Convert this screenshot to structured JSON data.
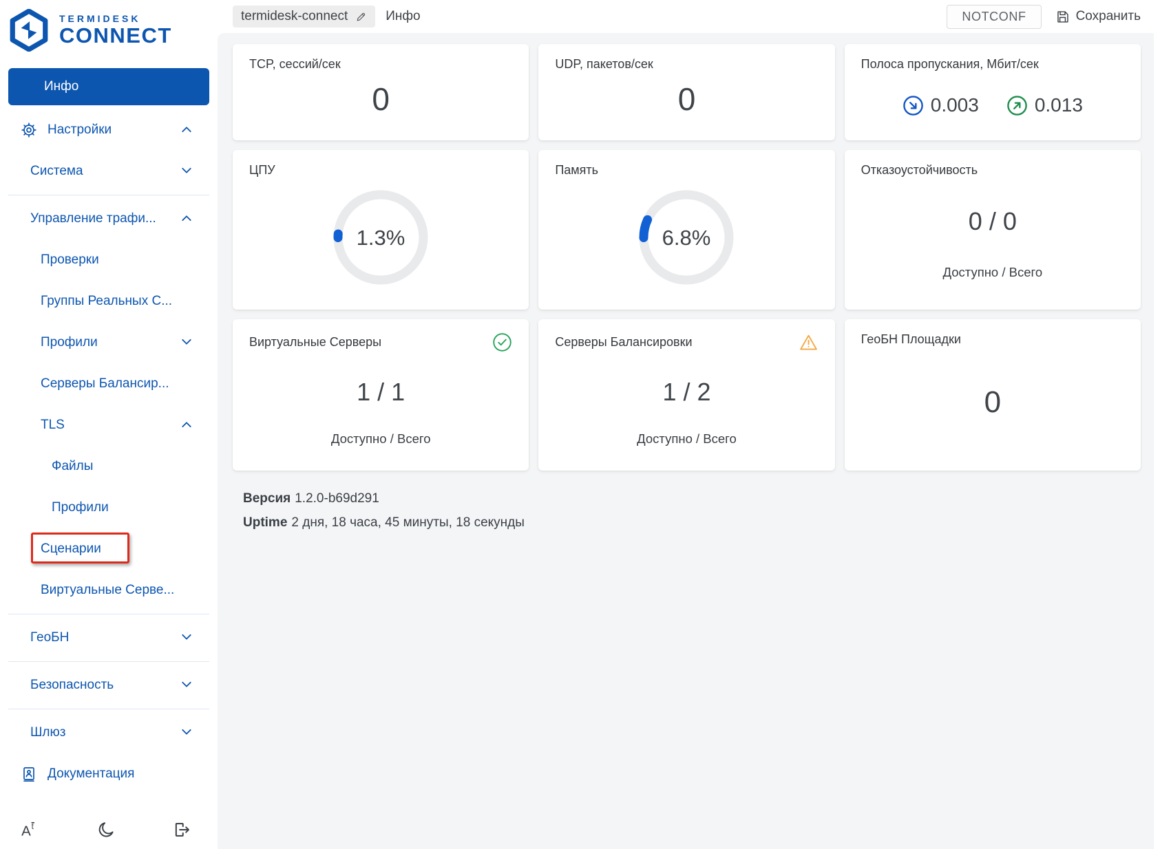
{
  "brand": {
    "top": "TERMIDESK",
    "bottom": "CONNECT"
  },
  "colors": {
    "blue": "#0d56b0",
    "gauge_arc": "#1160d4",
    "green": "#1d9e55",
    "orange": "#f5a742",
    "annotation_red": "#dd2a1b"
  },
  "header": {
    "hostname": "termidesk-connect",
    "page_title": "Инфо",
    "status_badge": "NOTCONF",
    "save_label": "Сохранить"
  },
  "sidebar": {
    "active": {
      "label": "Инфо",
      "name": "info"
    },
    "items": [
      {
        "label": "Настройки",
        "name": "settings",
        "level": 0,
        "icon": "gear",
        "chevron": "up"
      },
      {
        "label": "Система",
        "name": "system",
        "level": 1,
        "chevron": "down"
      },
      {
        "divider": true
      },
      {
        "label": "Управление трафи...",
        "name": "traffic-management",
        "level": 1,
        "chevron": "up"
      },
      {
        "label": "Проверки",
        "name": "checks",
        "level": 2
      },
      {
        "label": "Группы Реальных С...",
        "name": "real-server-groups",
        "level": 2
      },
      {
        "label": "Профили",
        "name": "profiles",
        "level": 2,
        "chevron": "down"
      },
      {
        "label": "Серверы Балансир...",
        "name": "balancer-servers",
        "level": 2
      },
      {
        "label": "TLS",
        "name": "tls",
        "level": 2,
        "chevron": "up"
      },
      {
        "label": "Файлы",
        "name": "tls-files",
        "level": 3
      },
      {
        "label": "Профили",
        "name": "tls-profiles",
        "level": 3
      },
      {
        "label": "Сценарии",
        "name": "tls-scenarios",
        "level": 2,
        "highlighted": true
      },
      {
        "label": "Виртуальные Серве...",
        "name": "virtual-servers",
        "level": 2
      },
      {
        "divider": true
      },
      {
        "label": "ГеоБН",
        "name": "geobn",
        "level": 1,
        "chevron": "down"
      },
      {
        "divider": true
      },
      {
        "label": "Безопасность",
        "name": "security",
        "level": 1,
        "chevron": "down"
      },
      {
        "divider": true
      },
      {
        "label": "Шлюз",
        "name": "gateway",
        "level": 1,
        "chevron": "down"
      },
      {
        "label": "Документация",
        "name": "documentation",
        "level": 0,
        "icon": "book"
      }
    ]
  },
  "cards": {
    "tcp": {
      "title": "TCP, сессий/сек",
      "value": "0"
    },
    "udp": {
      "title": "UDP, пакетов/сек",
      "value": "0"
    },
    "bandwidth": {
      "title": "Полоса пропускания, Мбит/сек",
      "incoming": "0.003",
      "outgoing": "0.013"
    },
    "cpu": {
      "title": "ЦПУ",
      "value": "1.3%",
      "percent": 1.3
    },
    "memory": {
      "title": "Память",
      "value": "6.8%",
      "percent": 6.8
    },
    "failover": {
      "title": "Отказоустойчивость",
      "value": "0 / 0",
      "caption": "Доступно / Всего"
    },
    "virtual_servers": {
      "title": "Виртуальные Серверы",
      "value": "1 / 1",
      "caption": "Доступно / Всего",
      "status": "ok"
    },
    "balancer_servers": {
      "title": "Серверы Балансировки",
      "value": "1 / 2",
      "caption": "Доступно / Всего",
      "status": "warning"
    },
    "geo_sites": {
      "title": "ГеоБН Площадки",
      "value": "0"
    }
  },
  "meta": {
    "version_label": "Версия",
    "version_value": "1.2.0-b69d291",
    "uptime_label": "Uptime",
    "uptime_value": "2 дня, 18 часа, 45 минуты, 18 секунды"
  }
}
